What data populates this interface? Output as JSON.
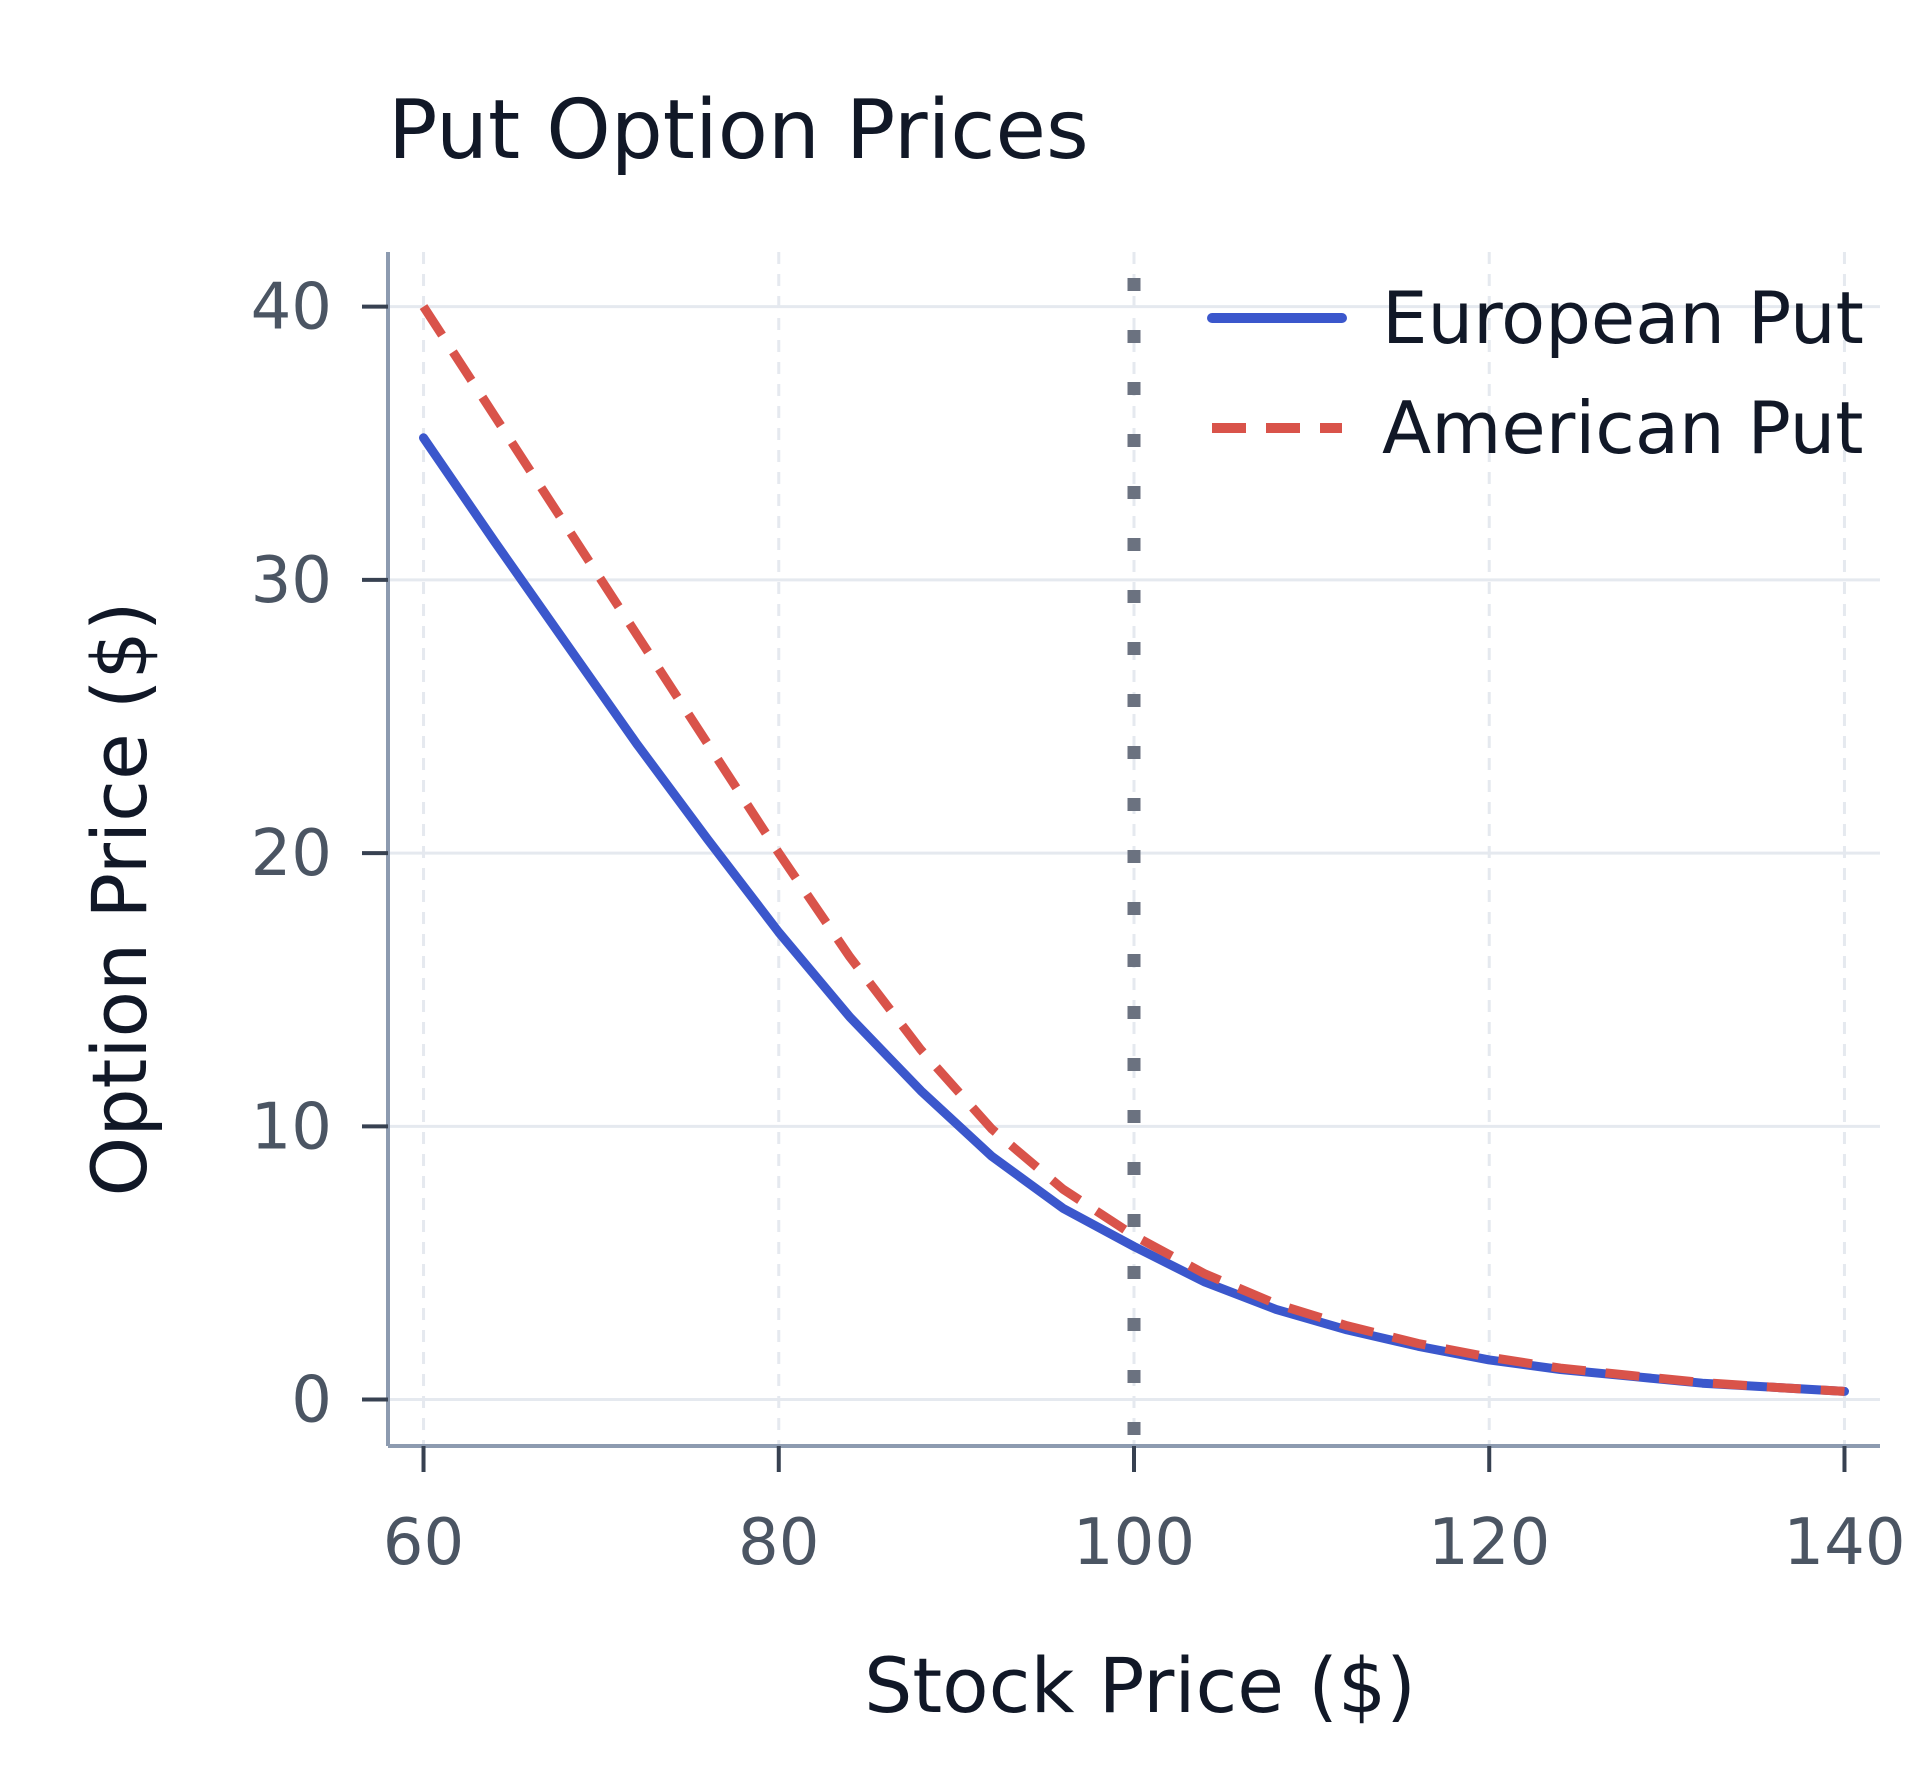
{
  "chart_data": {
    "type": "line",
    "title": "Put Option Prices",
    "xlabel": "Stock Price ($)",
    "ylabel": "Option Price ($)",
    "xlim": [
      58,
      142
    ],
    "ylim": [
      -1.7,
      42
    ],
    "xticks": [
      60,
      80,
      100,
      120,
      140
    ],
    "yticks": [
      0,
      10,
      20,
      30,
      40
    ],
    "grid": true,
    "legend": "top-right",
    "reference_line": {
      "x": 100,
      "style": "dotted",
      "color": "#6b7280"
    },
    "x": [
      60,
      64,
      68,
      72,
      76,
      80,
      84,
      88,
      92,
      96,
      100,
      104,
      108,
      112,
      116,
      120,
      124,
      128,
      132,
      136,
      140
    ],
    "series": [
      {
        "name": "European Put",
        "color": "#3b57cc",
        "style": "solid",
        "values": [
          35.2,
          31.4,
          27.7,
          24.0,
          20.5,
          17.1,
          14.0,
          11.3,
          8.9,
          7.0,
          5.6,
          4.3,
          3.3,
          2.55,
          1.95,
          1.45,
          1.1,
          0.85,
          0.6,
          0.45,
          0.3
        ]
      },
      {
        "name": "American Put",
        "color": "#d9534a",
        "style": "dashed",
        "values": [
          40.0,
          36.0,
          32.0,
          28.0,
          24.0,
          20.0,
          16.2,
          12.8,
          9.9,
          7.7,
          6.0,
          4.6,
          3.5,
          2.7,
          2.05,
          1.55,
          1.15,
          0.88,
          0.62,
          0.45,
          0.3
        ]
      }
    ]
  }
}
